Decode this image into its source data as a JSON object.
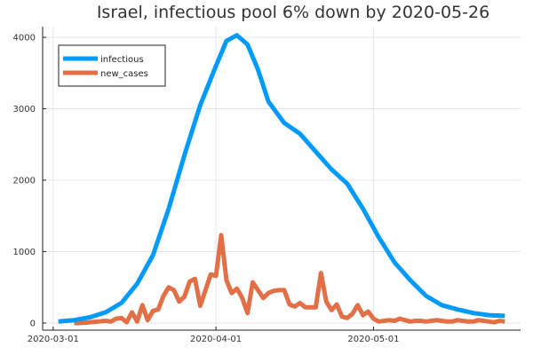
{
  "chart_data": {
    "type": "line",
    "title": "Israel, infectious pool 6% down by 2020-05-26",
    "xlabel": "",
    "ylabel": "",
    "x_start": "2020-03-01",
    "x_ticks": [
      "2020-03-01",
      "2020-04-01",
      "2020-05-01"
    ],
    "y_ticks": [
      0,
      1000,
      2000,
      3000,
      4000
    ],
    "ylim": [
      -100,
      4150
    ],
    "xlim": [
      "2020-02-28",
      "2020-05-29"
    ],
    "grid": true,
    "legend_position": "top-left",
    "series": [
      {
        "name": "infectious",
        "color": "#009af9",
        "dates": [
          "2020-03-02",
          "2020-03-05",
          "2020-03-08",
          "2020-03-11",
          "2020-03-14",
          "2020-03-17",
          "2020-03-20",
          "2020-03-23",
          "2020-03-26",
          "2020-03-29",
          "2020-04-01",
          "2020-04-03",
          "2020-04-05",
          "2020-04-07",
          "2020-04-09",
          "2020-04-11",
          "2020-04-14",
          "2020-04-17",
          "2020-04-20",
          "2020-04-23",
          "2020-04-26",
          "2020-04-29",
          "2020-05-02",
          "2020-05-05",
          "2020-05-08",
          "2020-05-11",
          "2020-05-14",
          "2020-05-17",
          "2020-05-20",
          "2020-05-23",
          "2020-05-26"
        ],
        "values": [
          20,
          40,
          80,
          150,
          280,
          550,
          950,
          1600,
          2350,
          3050,
          3600,
          3950,
          4030,
          3900,
          3550,
          3100,
          2800,
          2650,
          2400,
          2150,
          1950,
          1600,
          1200,
          850,
          600,
          380,
          250,
          190,
          140,
          110,
          100
        ]
      },
      {
        "name": "new_cases",
        "color": "#e26f46",
        "dates": [
          "2020-03-05",
          "2020-03-06",
          "2020-03-07",
          "2020-03-08",
          "2020-03-11",
          "2020-03-12",
          "2020-03-13",
          "2020-03-14",
          "2020-03-15",
          "2020-03-16",
          "2020-03-17",
          "2020-03-18",
          "2020-03-19",
          "2020-03-20",
          "2020-03-21",
          "2020-03-22",
          "2020-03-23",
          "2020-03-24",
          "2020-03-25",
          "2020-03-26",
          "2020-03-27",
          "2020-03-28",
          "2020-03-29",
          "2020-03-30",
          "2020-03-31",
          "2020-04-01",
          "2020-04-02",
          "2020-04-03",
          "2020-04-04",
          "2020-04-05",
          "2020-04-06",
          "2020-04-07",
          "2020-04-08",
          "2020-04-09",
          "2020-04-10",
          "2020-04-11",
          "2020-04-12",
          "2020-04-13",
          "2020-04-14",
          "2020-04-15",
          "2020-04-16",
          "2020-04-17",
          "2020-04-18",
          "2020-04-19",
          "2020-04-20",
          "2020-04-21",
          "2020-04-22",
          "2020-04-23",
          "2020-04-24",
          "2020-04-25",
          "2020-04-26",
          "2020-04-27",
          "2020-04-28",
          "2020-04-29",
          "2020-04-30",
          "2020-05-01",
          "2020-05-02",
          "2020-05-03",
          "2020-05-04",
          "2020-05-05",
          "2020-05-06",
          "2020-05-07",
          "2020-05-08",
          "2020-05-09",
          "2020-05-10",
          "2020-05-11",
          "2020-05-12",
          "2020-05-13",
          "2020-05-14",
          "2020-05-15",
          "2020-05-16",
          "2020-05-17",
          "2020-05-18",
          "2020-05-19",
          "2020-05-20",
          "2020-05-21",
          "2020-05-22",
          "2020-05-23",
          "2020-05-24",
          "2020-05-25",
          "2020-05-26"
        ],
        "values": [
          0,
          0,
          5,
          10,
          30,
          20,
          60,
          70,
          10,
          150,
          20,
          250,
          40,
          170,
          190,
          380,
          500,
          460,
          300,
          370,
          580,
          620,
          240,
          460,
          680,
          660,
          1230,
          600,
          420,
          480,
          350,
          140,
          570,
          460,
          350,
          420,
          450,
          460,
          460,
          260,
          230,
          280,
          220,
          220,
          220,
          700,
          300,
          180,
          260,
          90,
          70,
          130,
          250,
          110,
          160,
          60,
          20,
          30,
          40,
          30,
          60,
          40,
          20,
          30,
          30,
          20,
          30,
          40,
          30,
          20,
          20,
          40,
          30,
          20,
          20,
          40,
          30,
          20,
          10,
          30,
          20
        ]
      }
    ]
  }
}
